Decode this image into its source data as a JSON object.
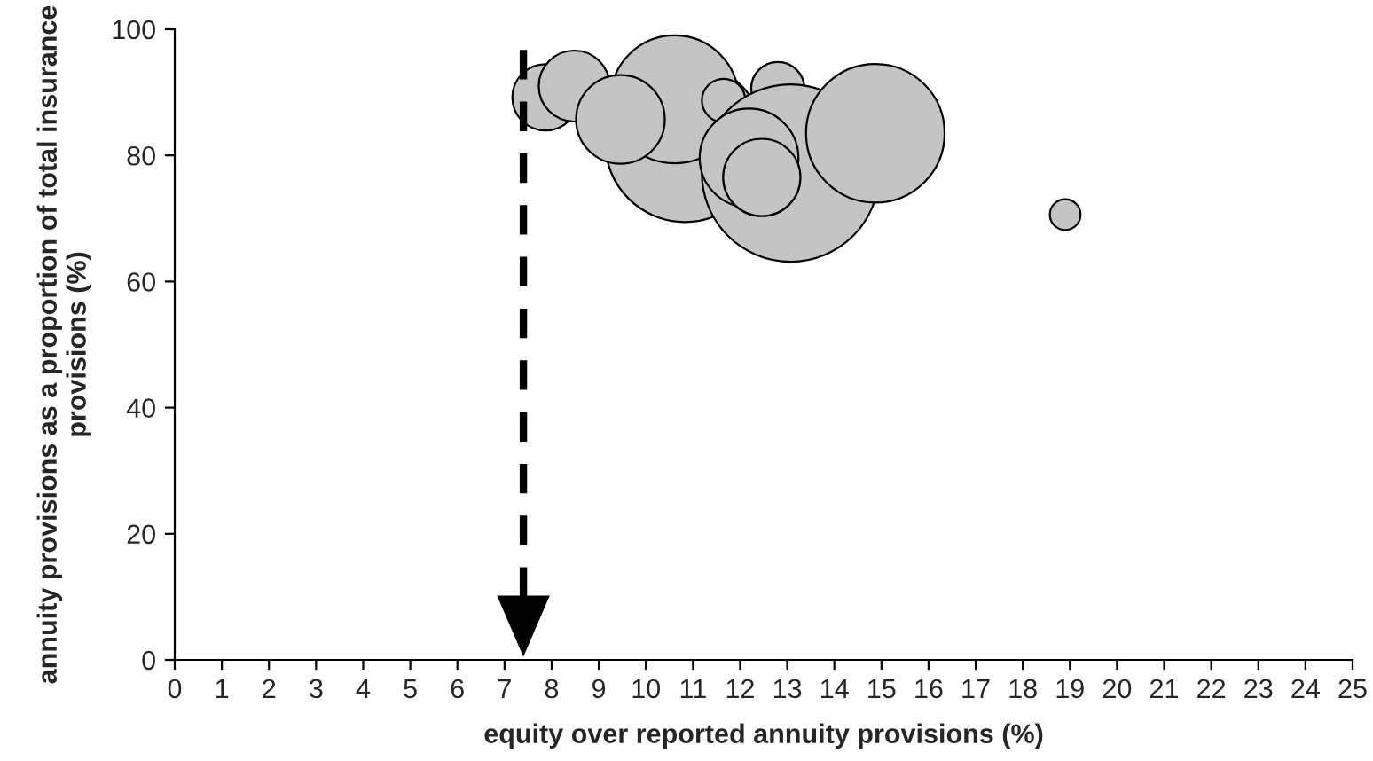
{
  "chart_data": {
    "type": "bubble",
    "xlabel": "equity over reported annuity provisions (%)",
    "ylabel": "annuity provisions as a proportion of total insurance provisions (%)",
    "x": [
      10.83,
      10.61,
      7.87,
      8.48,
      9.46,
      12.8,
      11.65,
      13.07,
      12.19,
      12.46,
      14.87,
      18.9
    ],
    "values": [
      82.1,
      88.9,
      89.2,
      91,
      85.7,
      90.6,
      88.7,
      77.2,
      79.6,
      76.5,
      83.5,
      70.6
    ],
    "sizes": [
      0.81,
      0.52,
      0.14,
      0.16,
      0.25,
      0.09,
      0.06,
      1,
      0.31,
      0.19,
      0.61,
      0.03
    ],
    "color": "#c4c4c4",
    "xlim": [
      0,
      25
    ],
    "xticks": [
      0,
      1,
      2,
      3,
      4,
      5,
      6,
      7,
      8,
      9,
      10,
      11,
      12,
      13,
      14,
      15,
      16,
      17,
      18,
      19,
      20,
      21,
      22,
      23,
      24,
      25
    ],
    "ylim": [
      0,
      100
    ],
    "yticks": [
      0,
      20,
      40,
      60,
      80,
      100
    ],
    "ref_lines": [
      {
        "axis": "x",
        "value": 7.4,
        "label": null,
        "color": "#000000",
        "line_style": "dashed"
      }
    ],
    "grid": false,
    "legend": false
  }
}
